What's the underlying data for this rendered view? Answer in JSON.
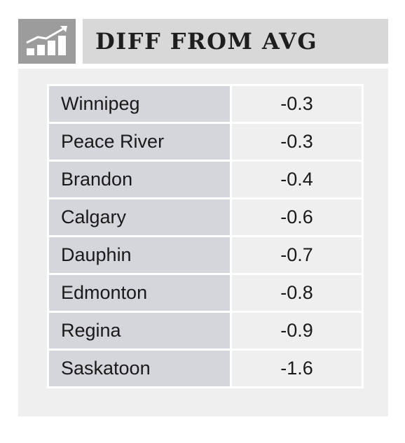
{
  "header": {
    "icon": "bar-chart-trend-icon",
    "title": "DIFF FROM AVG",
    "icon_bg": "#9c9c9c",
    "title_bg": "#d8d8d8"
  },
  "table": {
    "rows": [
      {
        "city": "Winnipeg",
        "value": "-0.3"
      },
      {
        "city": "Peace River",
        "value": "-0.3"
      },
      {
        "city": "Brandon",
        "value": "-0.4"
      },
      {
        "city": "Calgary",
        "value": "-0.6"
      },
      {
        "city": "Dauphin",
        "value": "-0.7"
      },
      {
        "city": "Edmonton",
        "value": "-0.8"
      },
      {
        "city": "Regina",
        "value": "-0.9"
      },
      {
        "city": "Saskatoon",
        "value": "-1.6"
      }
    ]
  },
  "colors": {
    "panel": "#efefef",
    "city_cell": "#d5d5dc",
    "value_cell": "#efefef"
  }
}
